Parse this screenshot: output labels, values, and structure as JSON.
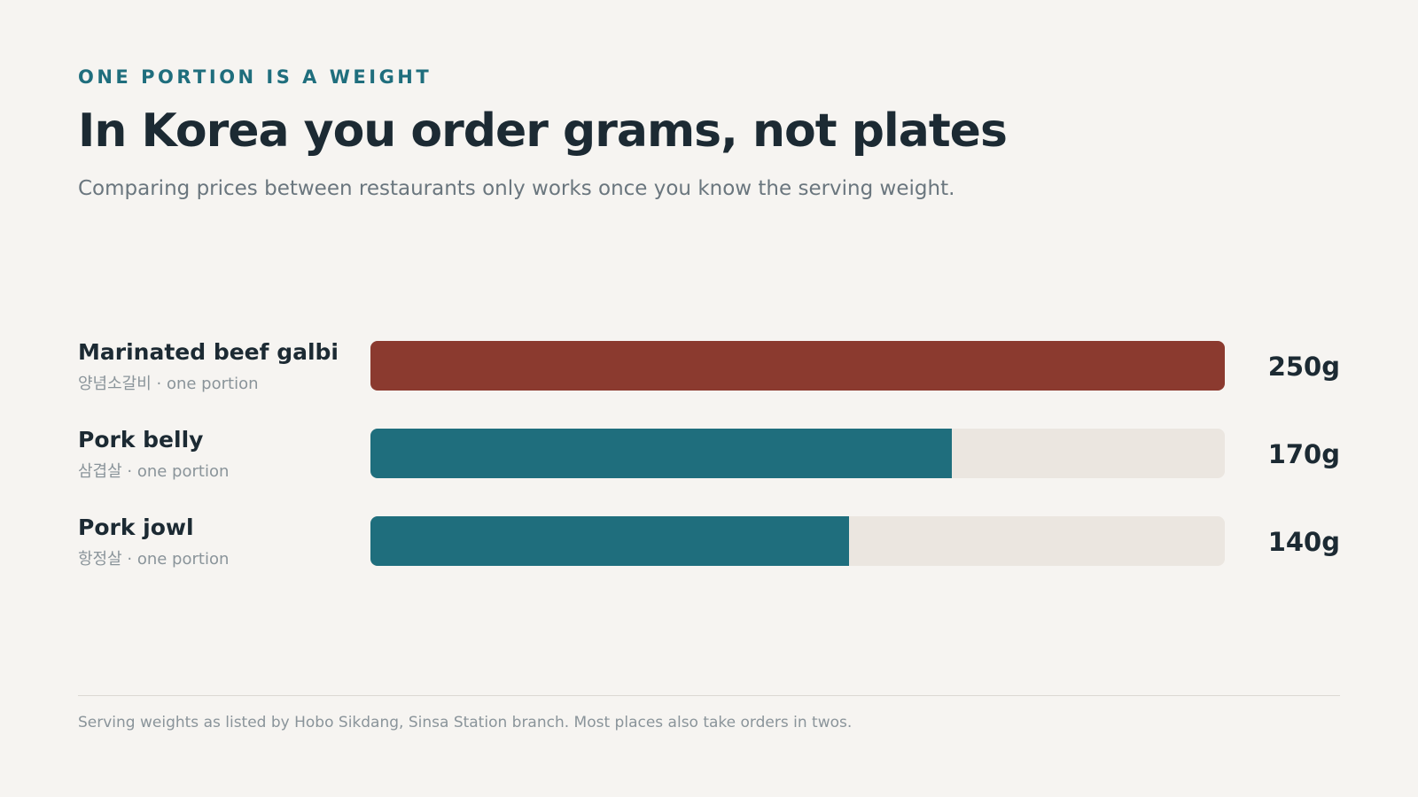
{
  "header": {
    "kicker": "ONE PORTION IS A WEIGHT",
    "title": "In Korea you order grams, not plates",
    "subtitle": "Comparing prices between restaurants only works once you know the serving weight."
  },
  "chart_data": {
    "type": "bar",
    "orientation": "horizontal",
    "unit": "g",
    "xlim": [
      0,
      250
    ],
    "categories": [
      "Marinated beef galbi",
      "Pork belly",
      "Pork jowl"
    ],
    "values": [
      250,
      170,
      140
    ],
    "rows": [
      {
        "label": "Marinated beef galbi",
        "sublabel": "양념소갈비 · one portion",
        "value": 250,
        "value_label": "250g",
        "color": "#8b3a2f"
      },
      {
        "label": "Pork belly",
        "sublabel": "삼겹살 · one portion",
        "value": 170,
        "value_label": "170g",
        "color": "#1f6e7d"
      },
      {
        "label": "Pork jowl",
        "sublabel": "항정살 · one portion",
        "value": 140,
        "value_label": "140g",
        "color": "#1f6e7d"
      }
    ],
    "track_color": "#ebe6e0"
  },
  "footer": {
    "note": "Serving weights as listed by Hobo Sikdang, Sinsa Station branch. Most places also take orders in twos."
  }
}
